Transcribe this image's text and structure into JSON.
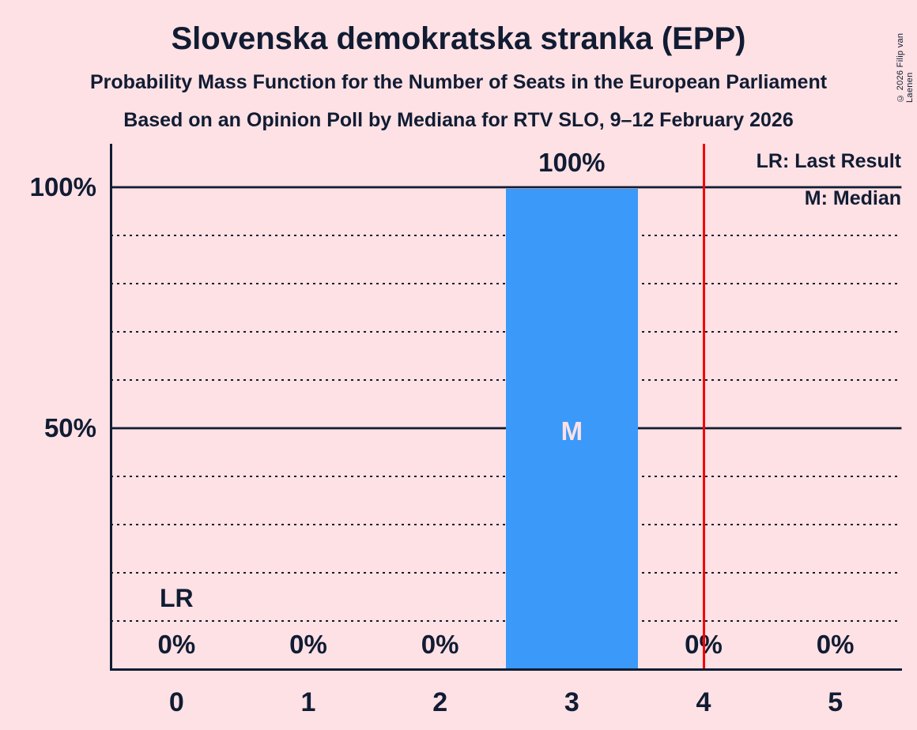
{
  "header": {
    "title": "Slovenska demokratska stranka (EPP)",
    "subtitle1": "Probability Mass Function for the Number of Seats in the European Parliament",
    "subtitle2": "Based on an Opinion Poll by Mediana for RTV SLO, 9–12 February 2026",
    "copyright": "© 2026 Filip van Laenen"
  },
  "legend": {
    "lr": "LR: Last Result",
    "m": "M: Median"
  },
  "colors": {
    "background": "#fde1e4",
    "text": "#111c33",
    "bar": "#3b99fa",
    "bar_label": "#fde1e4",
    "last_result_line": "#f80000"
  },
  "chart_data": {
    "type": "bar",
    "title": "Slovenska demokratska stranka (EPP)",
    "categories": [
      "0",
      "1",
      "2",
      "3",
      "4",
      "5"
    ],
    "values": [
      0,
      0,
      0,
      100,
      0,
      0
    ],
    "bar_labels": [
      "0%",
      "0%",
      "0%",
      "100%",
      "0%",
      "0%"
    ],
    "xlabel": "",
    "ylabel": "",
    "ylim": [
      0,
      105
    ],
    "y_ticks": [
      {
        "value": 100,
        "label": "100%"
      },
      {
        "value": 50,
        "label": "50%"
      }
    ],
    "gridlines_pct": [
      10,
      20,
      30,
      40,
      50,
      60,
      70,
      80,
      90,
      100
    ],
    "solid_gridlines_pct": [
      50,
      100
    ],
    "grid_style": "dotted",
    "median_marker": "M",
    "median_category": "3",
    "lr_marker": "LR",
    "lr_marker_category": "0",
    "last_result_line_position": 4.5,
    "legend_position": "top-right",
    "legend_entries": [
      "LR: Last Result",
      "M: Median"
    ]
  }
}
